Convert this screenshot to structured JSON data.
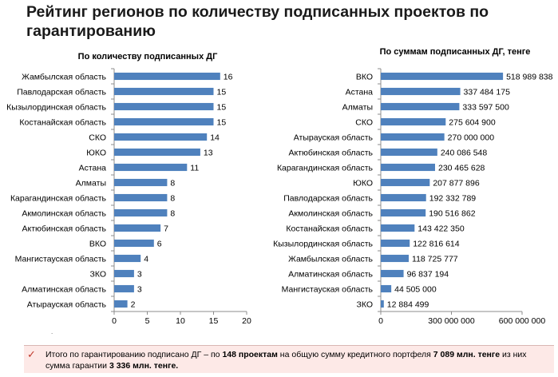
{
  "page": {
    "title": "Рейтинг регионов по количеству подписанных проектов по гарантированию",
    "dot": "."
  },
  "note": {
    "icon": "check-icon",
    "parts": [
      "Итого по гарантированию подписано ДГ – по ",
      "148 проектам",
      " на общую сумму кредитного портфеля ",
      "7 089 млн. тенге",
      "  из них сумма гарантии ",
      "3 336 млн. тенге."
    ]
  },
  "chart_data": [
    {
      "type": "bar",
      "orientation": "horizontal",
      "title": "По количеству подписанных ДГ",
      "categories": [
        "Жамбылская область",
        "Павлодарская область",
        "Кызылординская область",
        "Костанайская область",
        "СКО",
        "ЮКО",
        "Астана",
        "Алматы",
        "Карагандинская область",
        "Акмолинская область",
        "Актюбинская область",
        "ВКО",
        "Мангистауская область",
        "ЗКО",
        "Алматинская область",
        "Атырауская область"
      ],
      "values": [
        16,
        15,
        15,
        15,
        14,
        13,
        11,
        8,
        8,
        8,
        7,
        6,
        4,
        3,
        3,
        2
      ],
      "value_labels": [
        "16",
        "15",
        "15",
        "15",
        "14",
        "13",
        "11",
        "8",
        "8",
        "8",
        "7",
        "6",
        "4",
        "3",
        "3",
        "2"
      ],
      "xlim": [
        0,
        20
      ],
      "ticks": [
        0,
        5,
        10,
        15,
        20
      ],
      "tick_labels": [
        "0",
        "5",
        "10",
        "15",
        "20"
      ],
      "bar_color": "#4f81bd",
      "grid": false,
      "legend": "none"
    },
    {
      "type": "bar",
      "orientation": "horizontal",
      "title": "По суммам  подписанных ДГ,  тенге",
      "categories": [
        "ВКО",
        "Астана",
        "Алматы",
        "СКО",
        "Атырауская область",
        "Актюбинская область",
        "Карагандинская область",
        "ЮКО",
        "Павлодарская область",
        "Акмолинская область",
        "Костанайская область",
        "Кызылординская область",
        "Жамбылская область",
        "Алматинская область",
        "Мангистауская область",
        "ЗКО"
      ],
      "values": [
        518989838,
        337484175,
        333597500,
        275604900,
        270000000,
        240086548,
        230465628,
        207877896,
        192332789,
        190516862,
        143422350,
        122816614,
        118725777,
        96837194,
        44505000,
        12884499
      ],
      "value_labels": [
        "518 989 838",
        "337 484 175",
        "333 597 500",
        "275 604 900",
        "270 000 000",
        "240 086 548",
        "230 465 628",
        "207 877 896",
        "192 332 789",
        "190 516 862",
        "143 422 350",
        "122 816 614",
        "118 725 777",
        "96 837 194",
        "44 505 000",
        "12 884 499"
      ],
      "xlim": [
        0,
        600000000
      ],
      "ticks": [
        0,
        300000000,
        600000000
      ],
      "tick_labels": [
        "0",
        "300 000 000",
        "600 000 000"
      ],
      "bar_color": "#4f81bd",
      "grid": false,
      "legend": "none"
    }
  ]
}
